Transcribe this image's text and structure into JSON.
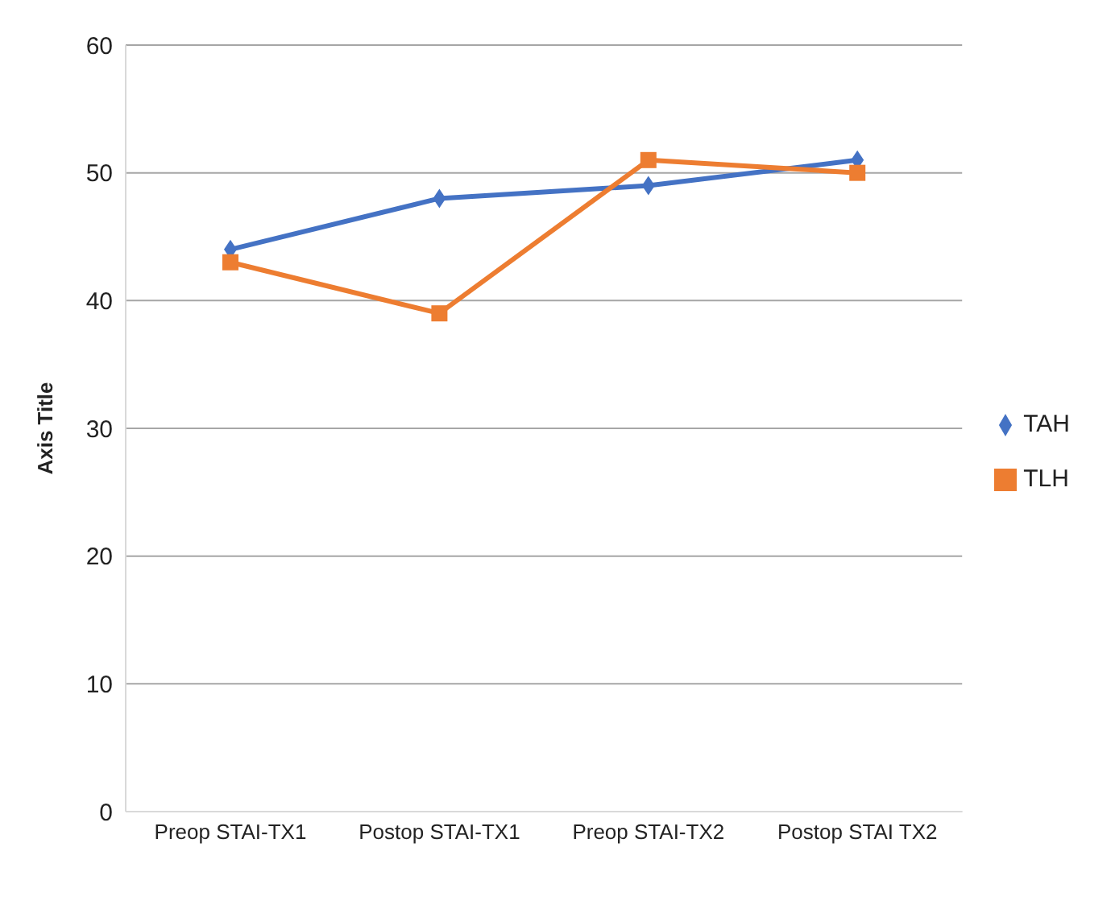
{
  "chart_data": {
    "type": "line",
    "ylabel": "Axis Title",
    "categories": [
      "Preop  STAI-TX1",
      "Postop  STAI-TX1",
      "Preop  STAI-TX2",
      "Postop  STAI  TX2"
    ],
    "series": [
      {
        "name": "TAH",
        "color": "#4472c4",
        "values": [
          44,
          48,
          49,
          51
        ],
        "marker": "diamond"
      },
      {
        "name": "TLH",
        "color": "#ed7d31",
        "values": [
          43,
          39,
          51,
          50
        ],
        "marker": "square"
      }
    ],
    "ylim": [
      0,
      60
    ],
    "yticks": [
      0,
      10,
      20,
      30,
      40,
      50,
      60
    ],
    "grid": "y",
    "legend": "right",
    "line_style": "solid"
  }
}
